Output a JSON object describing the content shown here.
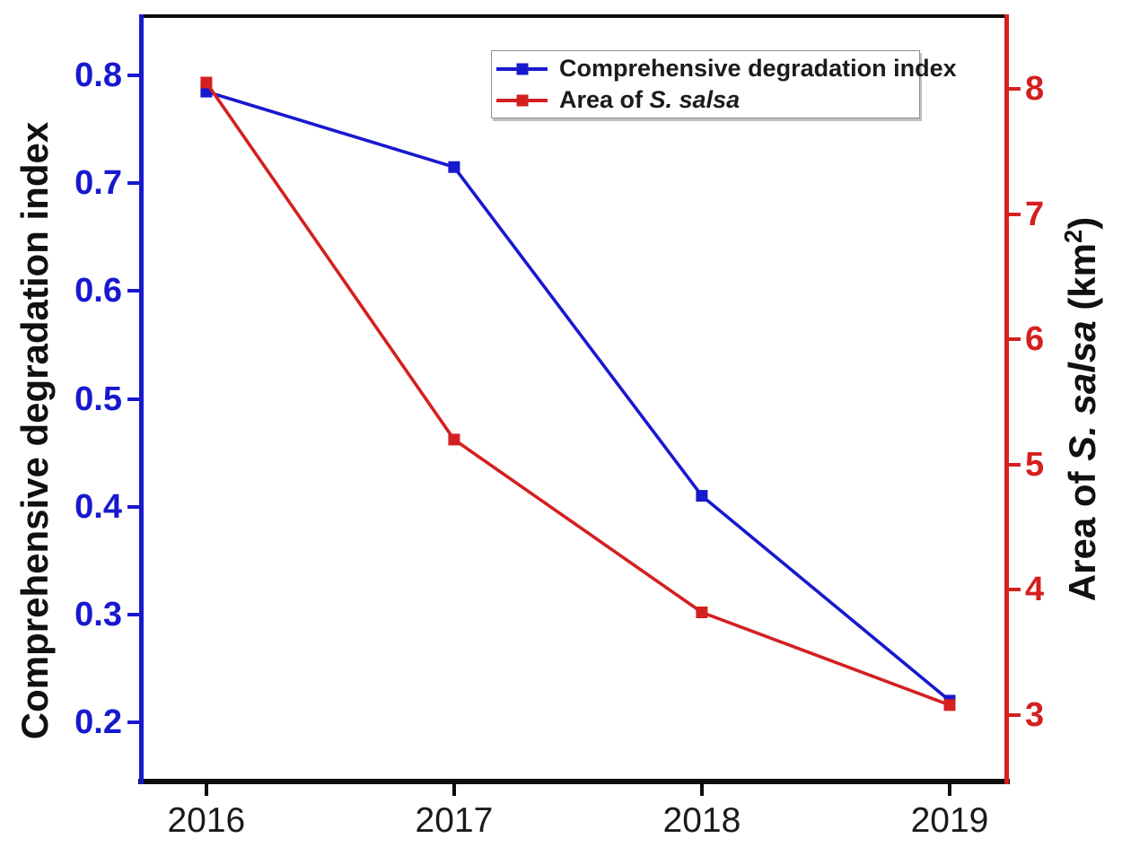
{
  "chart_data": {
    "type": "line",
    "title": "",
    "x": [
      2016,
      2017,
      2018,
      2019
    ],
    "series": [
      {
        "name": "Comprehensive degradation index",
        "axis": "left",
        "color": "#1818CF",
        "marker": "square",
        "values": [
          0.785,
          0.715,
          0.41,
          0.22
        ]
      },
      {
        "name": "Area of S. salsa",
        "axis": "right",
        "color": "#D42020",
        "marker": "square",
        "values": [
          8.05,
          5.2,
          3.82,
          3.08
        ]
      }
    ],
    "left_axis": {
      "label": "Comprehensive degradation index",
      "color": "#1818CF",
      "range": [
        0.145,
        0.855
      ],
      "ticks": [
        {
          "value": 0.8,
          "label": "0.8"
        },
        {
          "value": 0.7,
          "label": "0.7"
        },
        {
          "value": 0.6,
          "label": "0.6"
        },
        {
          "value": 0.5,
          "label": "0.5"
        },
        {
          "value": 0.4,
          "label": "0.4"
        },
        {
          "value": 0.3,
          "label": "0.3"
        },
        {
          "value": 0.2,
          "label": "0.2"
        }
      ]
    },
    "right_axis": {
      "label": {
        "prefix": "Area of ",
        "italic": "S. salsa",
        "unit_open": " (km",
        "superscript": "2",
        "unit_close": ")"
      },
      "color": "#D42020",
      "range": [
        2.47,
        8.58
      ],
      "ticks": [
        {
          "value": 8,
          "label": "8"
        },
        {
          "value": 7,
          "label": "7"
        },
        {
          "value": 6,
          "label": "6"
        },
        {
          "value": 5,
          "label": "5"
        },
        {
          "value": 4,
          "label": "4"
        },
        {
          "value": 3,
          "label": "3"
        }
      ]
    },
    "x_axis": {
      "color": "#0D0D0D",
      "range": [
        2015.736,
        2019.232
      ],
      "ticks": [
        {
          "value": 2016,
          "label": "2016"
        },
        {
          "value": 2017,
          "label": "2017"
        },
        {
          "value": 2018,
          "label": "2018"
        },
        {
          "value": 2019,
          "label": "2019"
        }
      ]
    },
    "legend": {
      "position": "top-center-inside",
      "entries": [
        {
          "label": "Comprehensive degradation index",
          "color": "#1818CF"
        },
        {
          "label_prefix": "Area of ",
          "label_italic": "S. salsa",
          "color": "#D42020"
        }
      ]
    },
    "grid": false,
    "background": "#FFFFFF"
  }
}
